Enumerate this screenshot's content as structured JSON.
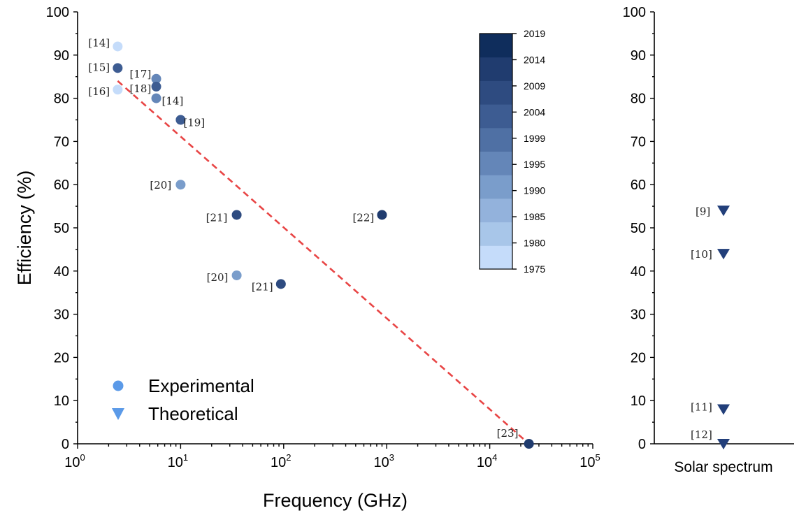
{
  "chart_data": [
    {
      "type": "scatter",
      "xscale": "log",
      "xlabel": "Frequency (GHz)",
      "ylabel": "Efficiency (%)",
      "xlim": [
        1,
        100000
      ],
      "ylim": [
        0,
        100
      ],
      "x_ticks": [
        {
          "base": "10",
          "exp": "0",
          "value": 1
        },
        {
          "base": "10",
          "exp": "1",
          "value": 10
        },
        {
          "base": "10",
          "exp": "2",
          "value": 100
        },
        {
          "base": "10",
          "exp": "3",
          "value": 1000
        },
        {
          "base": "10",
          "exp": "4",
          "value": 10000
        },
        {
          "base": "10",
          "exp": "5",
          "value": 100000
        }
      ],
      "y_ticks": [
        "0",
        "10",
        "20",
        "30",
        "40",
        "50",
        "60",
        "70",
        "80",
        "90",
        "100"
      ],
      "grid": false,
      "legend": {
        "position": "bottom-left",
        "entries": [
          {
            "label": "Experimental",
            "marker": "circle",
            "color": "#5b9ae8"
          },
          {
            "label": "Theoretical",
            "marker": "triangle-down",
            "color": "#5b9ae8"
          }
        ]
      },
      "series": [
        {
          "marker": "circle",
          "points": [
            {
              "x": 2.45,
              "y": 92,
              "ref": "[14]",
              "year": 1977
            },
            {
              "x": 2.45,
              "y": 87,
              "ref": "[15]",
              "year": 2006
            },
            {
              "x": 2.45,
              "y": 82,
              "ref": "[16]",
              "year": 1977
            },
            {
              "x": 5.8,
              "y": 84.5,
              "ref": "[17]",
              "year": 1998
            },
            {
              "x": 5.8,
              "y": 82.7,
              "ref": "[18]",
              "year": 2004
            },
            {
              "x": 5.8,
              "y": 80,
              "ref": "[14]",
              "year": 1997
            },
            {
              "x": 10,
              "y": 75,
              "ref": "[19]",
              "year": 2007
            },
            {
              "x": 10,
              "y": 60,
              "ref": "[20]",
              "year": 1991
            },
            {
              "x": 35,
              "y": 53,
              "ref": "[21]",
              "year": 2013
            },
            {
              "x": 35,
              "y": 39,
              "ref": "[20]",
              "year": 1991
            },
            {
              "x": 94,
              "y": 37,
              "ref": "[21]",
              "year": 2013
            },
            {
              "x": 900,
              "y": 53,
              "ref": "[22]",
              "year": 2016
            },
            {
              "x": 24000,
              "y": 0,
              "ref": "[23]",
              "year": 2017
            }
          ]
        }
      ],
      "trend_line": {
        "style": "dashed",
        "color": "#e84545",
        "x": [
          2.45,
          24000
        ],
        "y": [
          84,
          0
        ]
      },
      "colorbar": {
        "labels": [
          "1975",
          "1980",
          "1985",
          "1990",
          "1995",
          "1999",
          "2004",
          "2009",
          "2014",
          "2019"
        ],
        "colors": [
          "#c5dcfa",
          "#a8c6e9",
          "#93b2dc",
          "#7a9dcb",
          "#6486b8",
          "#4f70a4",
          "#3d5c92",
          "#2e4b80",
          "#203c6f",
          "#0f2d5c"
        ]
      }
    },
    {
      "type": "scatter",
      "ylim": [
        0,
        100
      ],
      "y_ticks": [
        "0",
        "10",
        "20",
        "30",
        "40",
        "50",
        "60",
        "70",
        "80",
        "90",
        "100"
      ],
      "categories": [
        "Solar spectrum"
      ],
      "series": [
        {
          "marker": "triangle-down",
          "color": "#223f7a",
          "points": [
            {
              "x": "Solar spectrum",
              "y": 54,
              "ref": "[9]"
            },
            {
              "x": "Solar spectrum",
              "y": 44,
              "ref": "[10]"
            },
            {
              "x": "Solar spectrum",
              "y": 8,
              "ref": "[11]"
            },
            {
              "x": "Solar spectrum",
              "y": 0,
              "ref": "[12]"
            }
          ]
        }
      ]
    }
  ]
}
